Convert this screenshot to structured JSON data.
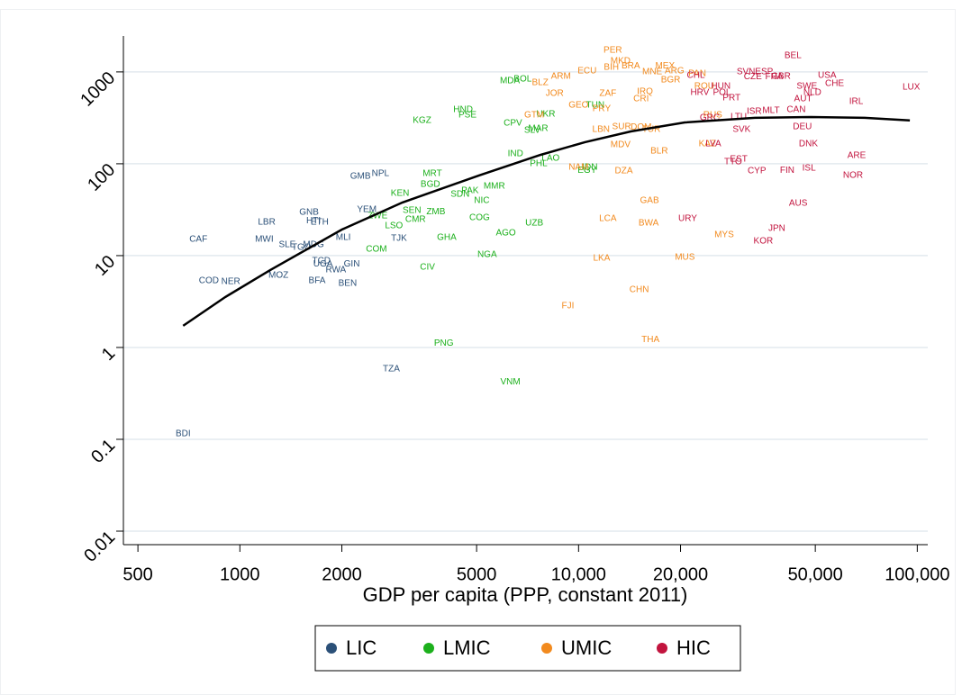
{
  "chart_data": {
    "type": "scatter",
    "x_label": "GDP per capita (PPP, constant 2011)",
    "xscale": "log",
    "yscale": "log",
    "xlim": [
      453,
      107400
    ],
    "ylim": [
      0.00713,
      2460
    ],
    "xticks": [
      500,
      1000,
      2000,
      5000,
      {
        "value": 10000,
        "label": "10,000"
      },
      {
        "value": 20000,
        "label": "20,000"
      },
      {
        "value": 50000,
        "label": "50,000"
      },
      {
        "value": 100000,
        "label": "100,000"
      }
    ],
    "yticks": [
      0.01,
      0.1,
      1,
      10,
      100,
      1000
    ],
    "grid": true,
    "legend": "bottom",
    "series": [
      {
        "name": "LIC",
        "color": "#2b5078",
        "labels": [
          "BDI",
          "TZA",
          "CAF",
          "MWI",
          "LBR",
          "GNB",
          "HTI",
          "ETH",
          "SLE",
          "TGO",
          "MDG",
          "MLI",
          "YEM",
          "NPL",
          "GMB",
          "TJK",
          "TCD",
          "UGA",
          "GIN",
          "RWA",
          "MOZ",
          "COD",
          "NER",
          "BFA",
          "BEN"
        ],
        "x": [
          680,
          2800,
          754,
          1180,
          1200,
          1600,
          1650,
          1720,
          1380,
          1520,
          1650,
          2020,
          2370,
          2600,
          2270,
          2950,
          1740,
          1760,
          2140,
          1920,
          1300,
          810,
          940,
          1690,
          2080
        ],
        "values": [
          0.115,
          0.58,
          15,
          15,
          23,
          29.6,
          24,
          23,
          13.1,
          12.3,
          13.1,
          15.7,
          31.6,
          78,
          73,
          15.4,
          8.7,
          8.1,
          8.1,
          7,
          6.1,
          5.3,
          5.2,
          5.3,
          5
        ]
      },
      {
        "name": "LMIC",
        "color": "#1cb01c",
        "labels": [
          "PNG",
          "VNM",
          "CIV",
          "NGA",
          "COM",
          "GHA",
          "AGO",
          "UZB",
          "COG",
          "LSO",
          "CMR",
          "ZWE",
          "SEN",
          "ZMB",
          "NIC",
          "SDN",
          "PAK",
          "MMR",
          "KEN",
          "BGD",
          "MRT",
          "IND",
          "PHL",
          "LAO",
          "IDN",
          "EGY",
          "KGZ",
          "HND",
          "PSE",
          "MDA",
          "BOL",
          "CPV",
          "SLV",
          "MAR",
          "UKR",
          "TUN"
        ],
        "x": [
          4000,
          6290,
          3580,
          5370,
          2530,
          4080,
          6100,
          7400,
          5100,
          2850,
          3300,
          2550,
          3220,
          3790,
          5180,
          4470,
          4780,
          5640,
          2970,
          3650,
          3700,
          6510,
          7620,
          8270,
          10800,
          10600,
          3450,
          4560,
          4700,
          6270,
          6840,
          6400,
          7300,
          7600,
          8000,
          11200
        ],
        "values": [
          1.11,
          0.42,
          7.5,
          10.2,
          11.7,
          15.7,
          17.6,
          22.5,
          25.8,
          21,
          24.7,
          27,
          31,
          30,
          39.6,
          46.4,
          50.8,
          56.9,
          47.5,
          59.6,
          78,
          128,
          100,
          115,
          91,
          85,
          296,
          387,
          338,
          798,
          836,
          276,
          231,
          242,
          346,
          434
        ]
      },
      {
        "name": "UMIC",
        "color": "#f28a1e",
        "labels": [
          "PER",
          "MKD",
          "BIH",
          "BRA",
          "ECU",
          "ARM",
          "BLZ",
          "MEX",
          "MNE",
          "ARG",
          "BGR",
          "JOR",
          "ZAF",
          "IRQ",
          "CRI",
          "ROU",
          "THA",
          "FJI",
          "CHN",
          "LKA",
          "MUS",
          "MYS",
          "BWA",
          "LCA",
          "GAB",
          "DZA",
          "MDV",
          "BLR",
          "KAZ",
          "LBN",
          "SUR",
          "DOM",
          "TUR",
          "PRY",
          "GTM",
          "GEO",
          "RUS",
          "NAM",
          "PAN"
        ],
        "x": [
          12620,
          13300,
          12500,
          14260,
          10600,
          8870,
          7700,
          18000,
          16500,
          19200,
          18700,
          8500,
          12200,
          15700,
          15300,
          23500,
          16300,
          9300,
          15100,
          11700,
          20600,
          26900,
          16100,
          12200,
          16200,
          13600,
          13300,
          17300,
          24000,
          11650,
          13400,
          15300,
          16400,
          11700,
          7400,
          10000,
          24900,
          10000,
          22400
        ],
        "values": [
          1720,
          1310,
          1120,
          1160,
          1023,
          893,
          763,
          1160,
          1000,
          1020,
          816,
          582,
          582,
          608,
          508,
          697,
          1.22,
          2.82,
          4.24,
          9.35,
          9.55,
          16.8,
          22.5,
          25.2,
          39.6,
          83.5,
          161,
          137,
          164,
          236,
          252,
          250,
          236,
          396,
          338,
          434,
          338,
          91,
          955
        ]
      },
      {
        "name": "HIC",
        "color": "#c2143e",
        "labels": [
          "BEL",
          "SVK",
          "SVN",
          "ESP",
          "CZE",
          "FRA",
          "GBR",
          "USA",
          "CHE",
          "SWE",
          "NLD",
          "AUT",
          "CAN",
          "MLT",
          "ISR",
          "LTU",
          "PRT",
          "IRL",
          "LUX",
          "DEU",
          "DNK",
          "ARE",
          "NOR",
          "ISL",
          "FIN",
          "CYP",
          "EST",
          "TTO",
          "LVA",
          "AUS",
          "JPN",
          "KOR",
          "URY",
          "GRC",
          "HRV",
          "HUN",
          "POL",
          "CHL"
        ],
        "x": [
          42950,
          30300,
          31200,
          35300,
          32700,
          37800,
          39600,
          54200,
          57000,
          47200,
          49000,
          46000,
          43900,
          37000,
          33000,
          29700,
          28300,
          66000,
          96000,
          45800,
          47700,
          66200,
          64600,
          47900,
          41300,
          33600,
          29700,
          28600,
          25000,
          44500,
          38500,
          35100,
          21000,
          24400,
          22800,
          26300,
          26500,
          22200
        ],
        "values": [
          1500,
          236,
          1000,
          1000,
          880,
          880,
          898,
          914,
          746,
          697,
          595,
          508,
          387,
          379,
          370,
          323,
          520,
          475,
          681,
          252,
          164,
          122,
          75,
          89,
          85,
          83.5,
          112,
          105,
          164,
          37,
          19.7,
          14.4,
          25.2,
          316,
          595,
          697,
          595,
          914
        ]
      }
    ],
    "fit": {
      "color": "#000000",
      "x": [
        680,
        906,
        1230,
        2000,
        3020,
        5080,
        7727,
        10440,
        14260,
        20600,
        33150,
        48530,
        69980,
        95060
      ],
      "values": [
        1.72,
        3.54,
        6.97,
        19.2,
        37.9,
        74.6,
        125,
        172,
        225,
        282,
        316,
        323,
        316,
        296
      ]
    }
  }
}
